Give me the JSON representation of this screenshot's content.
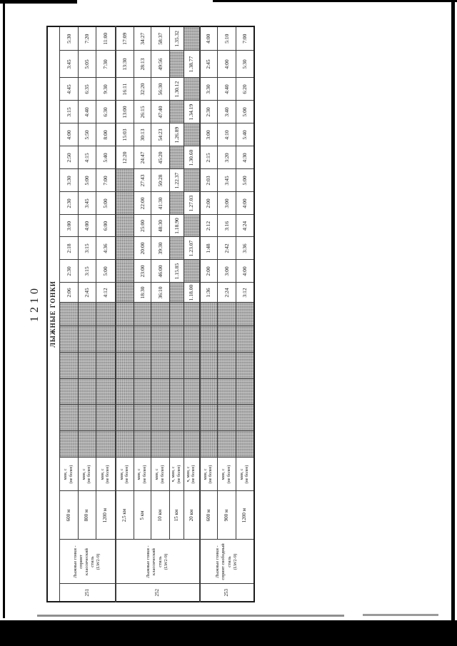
{
  "page": {
    "number": "1210",
    "table_title": "ЛЫЖНЫЕ ГОНКИ"
  },
  "colors": {
    "paper": "#ffffff",
    "ink": "#151515",
    "shade": "#acacac",
    "scan_edge": "#000000"
  },
  "table": {
    "shaded_lead_columns": 6,
    "value_columns": 12,
    "groups": [
      {
        "num": "251",
        "discipline_lines": [
          "Лыжные гонки -",
          "спринт",
          "классический",
          "стиль",
          "(LW2-9)"
        ],
        "rows": [
          {
            "distance": "600 м",
            "units_lines": [
              "мин, с",
              "(не более)"
            ],
            "values": [
              "2:06",
              "2:30",
              "2:18",
              "3:00",
              "2:30",
              "3:30",
              "2:50",
              "4:00",
              "3:15",
              "4:45",
              "3:45",
              "5:30"
            ]
          },
          {
            "distance": "800 м",
            "units_lines": [
              "мин, с",
              "(не более)"
            ],
            "values": [
              "2:45",
              "3:15",
              "3:15",
              "4:00",
              "3:45",
              "5:00",
              "4:15",
              "5:50",
              "4:40",
              "6:35",
              "5:05",
              "7:20"
            ]
          },
          {
            "distance": "1200 м",
            "units_lines": [
              "мин, с",
              "(не более)"
            ],
            "values": [
              "4:12",
              "5:00",
              "4:36",
              "6:00",
              "5:00",
              "7:00",
              "5:40",
              "8:00",
              "6:30",
              "9:30",
              "7:30",
              "11:00"
            ]
          }
        ]
      },
      {
        "num": "252",
        "discipline_lines": [
          "Лыжные гонки -",
          "классический",
          "стиль",
          "(LW2-9)"
        ],
        "rows": [
          {
            "distance": "2,5 км",
            "units_lines": [
              "мин, с",
              "(не более)"
            ],
            "values": [
              null,
              null,
              null,
              null,
              null,
              null,
              "12:20",
              "15:03",
              "13:00",
              "16:11",
              "13:30",
              "17:09"
            ]
          },
          {
            "distance": "5 км",
            "units_lines": [
              "мин, с",
              "(не более)"
            ],
            "values": [
              "18:30",
              "23:00",
              "20:00",
              "25:00",
              "22:00",
              "27:43",
              "24:47",
              "30:13",
              "26:15",
              "32:20",
              "28:13",
              "34:27"
            ]
          },
          {
            "distance": "10 км",
            "units_lines": [
              "мин, с",
              "(не более)"
            ],
            "values": [
              "36:10",
              "46:00",
              "39:30",
              "48:30",
              "41:30",
              "50:28",
              "45:20",
              "54:23",
              "47:40",
              "56:30",
              "49:56",
              "58:37"
            ]
          },
          {
            "distance": "15 км",
            "units_lines": [
              "ч, мин, с",
              "(не более)"
            ],
            "values": [
              null,
              "1.15.85",
              null,
              "1.18.90",
              null,
              "1.22.37",
              null,
              "1.26.89",
              null,
              "1.30.12",
              null,
              "1.35.32"
            ]
          },
          {
            "distance": "20 км",
            "units_lines": [
              "ч, мин, с",
              "(не более)"
            ],
            "values": [
              "1.18.00",
              null,
              "1.23.07",
              null,
              "1.27.03",
              null,
              "1.30.60",
              null,
              "1.34.19",
              null,
              "1.38.77",
              null
            ]
          }
        ]
      },
      {
        "num": "253",
        "discipline_lines": [
          "Лыжные гонки -",
          "спринт свободный",
          "стиль",
          "(LW2-9)"
        ],
        "rows": [
          {
            "distance": "600 м",
            "units_lines": [
              "мин, с",
              "(не более)"
            ],
            "values": [
              "1:36",
              "2:00",
              "1:48",
              "2:12",
              "2:00",
              "2:03",
              "2:15",
              "3:00",
              "2:30",
              "3:30",
              "2:45",
              "4:00"
            ]
          },
          {
            "distance": "900 м",
            "units_lines": [
              "мин, с",
              "(не более)"
            ],
            "values": [
              "2:24",
              "3:00",
              "2:42",
              "3:16",
              "3:00",
              "3:45",
              "3:20",
              "4:10",
              "3:40",
              "4:40",
              "4:00",
              "5:10"
            ]
          },
          {
            "distance": "1200 м",
            "units_lines": [
              "мин, с",
              "(не более)"
            ],
            "values": [
              "3:12",
              "4:00",
              "3:36",
              "4:24",
              "4:00",
              "5:00",
              "4:30",
              "5:40",
              "5:00",
              "6:20",
              "5:30",
              "7:00"
            ]
          }
        ]
      }
    ]
  }
}
